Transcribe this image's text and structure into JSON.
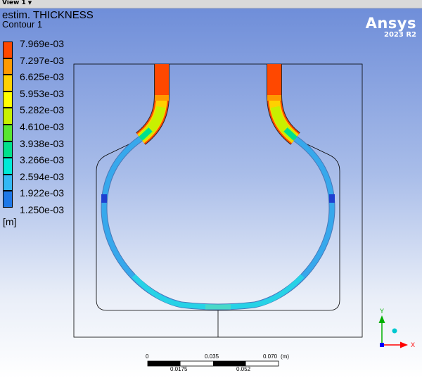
{
  "tab": {
    "label": "View 1",
    "caret": "▼"
  },
  "title": "estim. THICKNESS",
  "subtitle": "Contour 1",
  "legend": {
    "labels": [
      "7.969e-03",
      "7.297e-03",
      "6.625e-03",
      "5.953e-03",
      "5.282e-03",
      "4.610e-03",
      "3.938e-03",
      "3.266e-03",
      "2.594e-03",
      "1.922e-03",
      "1.250e-03"
    ],
    "colors": [
      "#ff4800",
      "#ff9900",
      "#ffd100",
      "#ffff00",
      "#c8f000",
      "#57e630",
      "#00e08c",
      "#00ead8",
      "#33b8f5",
      "#1e78e8",
      "#0026ff"
    ],
    "unit": "[m]"
  },
  "brand": {
    "name": "Ansys",
    "version": "2023 R2"
  },
  "scale_bar": {
    "top_labels": [
      "0",
      "0.035",
      "0.070"
    ],
    "bottom_labels": [
      "0.0175",
      "0.052"
    ],
    "unit": "(m)"
  },
  "triad": {
    "y_label": "Y",
    "x_label": "X",
    "axis_y_color": "#00b000",
    "axis_x_color": "#ff0000",
    "origin_color": "#0000ff"
  }
}
